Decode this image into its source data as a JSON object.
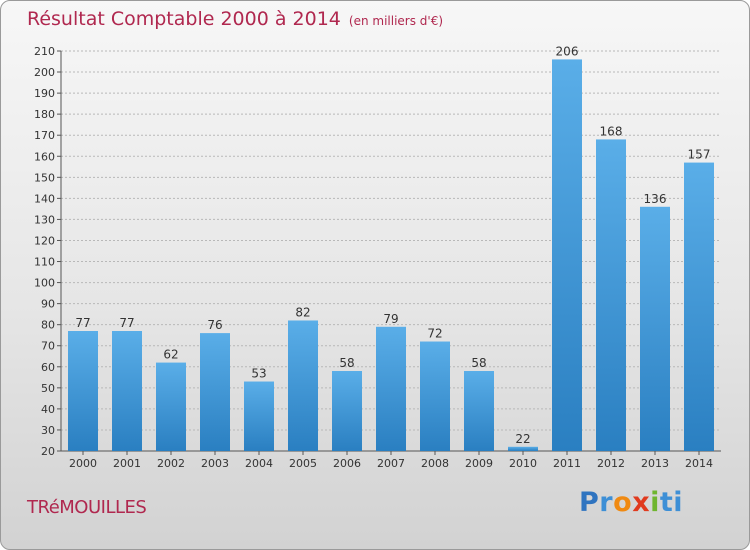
{
  "chart_data": {
    "type": "bar",
    "title": "Résultat Comptable 2000 à 2014",
    "subtitle": "(en milliers d'€)",
    "categories": [
      "2000",
      "2001",
      "2002",
      "2003",
      "2004",
      "2005",
      "2006",
      "2007",
      "2008",
      "2009",
      "2010",
      "2011",
      "2012",
      "2013",
      "2014"
    ],
    "values": [
      77,
      77,
      62,
      76,
      53,
      82,
      58,
      79,
      72,
      58,
      22,
      206,
      168,
      136,
      157
    ],
    "ylim": [
      20,
      210
    ],
    "ytick_step": 10,
    "grid": true,
    "bar_color_top": "#5aaee8",
    "bar_color_bottom": "#2a7fc1"
  },
  "footer": {
    "town": "TRéMOUILLES",
    "logo_letters": [
      "P",
      "r",
      "o",
      "x",
      "i",
      "t",
      "i"
    ],
    "logo_colors": [
      "#2f74c0",
      "#3d8fd6",
      "#f08a12",
      "#e03a1e",
      "#6fb52f",
      "#3d8fd6",
      "#3d8fd6"
    ]
  },
  "colors": {
    "title": "#b0284f",
    "grid": "#b8b8b8"
  }
}
